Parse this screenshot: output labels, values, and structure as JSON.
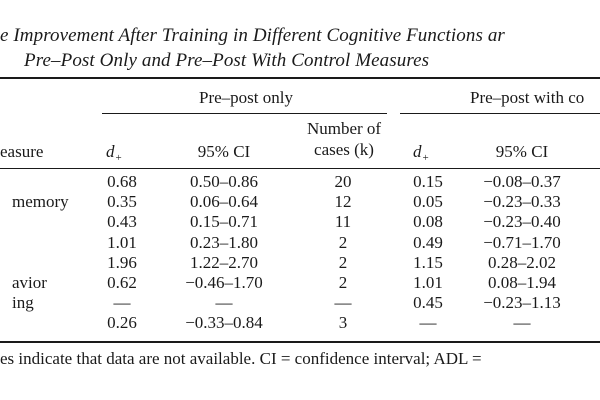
{
  "caption": {
    "line1": "e Improvement After Training in Different Cognitive Functions ar",
    "line2": "Pre–Post Only and Pre–Post With Control Measures"
  },
  "header": {
    "group_pre_post_only": "Pre–post only",
    "group_pre_post_control": "Pre–post with co",
    "measure": "easure",
    "d_plus": "d",
    "d_sub": "+",
    "ci_95": "95% CI",
    "num_cases_line1": "Number of",
    "num_cases_line2": "cases (k)"
  },
  "rows": [
    {
      "label": "",
      "d1": "0.68",
      "ci1": "0.50–0.86",
      "k": "20",
      "d2": "0.15",
      "ci2": "−0.08–0.37"
    },
    {
      "label": "memory",
      "d1": "0.35",
      "ci1": "0.06–0.64",
      "k": "12",
      "d2": "0.05",
      "ci2": "−0.23–0.33"
    },
    {
      "label": "",
      "d1": "0.43",
      "ci1": "0.15–0.71",
      "k": "11",
      "d2": "0.08",
      "ci2": "−0.23–0.40"
    },
    {
      "label": "",
      "d1": "1.01",
      "ci1": "0.23–1.80",
      "k": "2",
      "d2": "0.49",
      "ci2": "−0.71–1.70"
    },
    {
      "label": "",
      "d1": "1.96",
      "ci1": "1.22–2.70",
      "k": "2",
      "d2": "1.15",
      "ci2": "0.28–2.02"
    },
    {
      "label": "avior",
      "d1": "0.62",
      "ci1": "−0.46–1.70",
      "k": "2",
      "d2": "1.01",
      "ci2": "0.08–1.94"
    },
    {
      "label": "ing",
      "d1": "—",
      "ci1": "—",
      "k": "—",
      "d2": "0.45",
      "ci2": "−0.23–1.13"
    },
    {
      "label": "",
      "d1": "0.26",
      "ci1": "−0.33–0.84",
      "k": "3",
      "d2": "—",
      "ci2": "—"
    }
  ],
  "footnote": "es indicate that data are not available. CI = confidence interval; ADL ="
}
